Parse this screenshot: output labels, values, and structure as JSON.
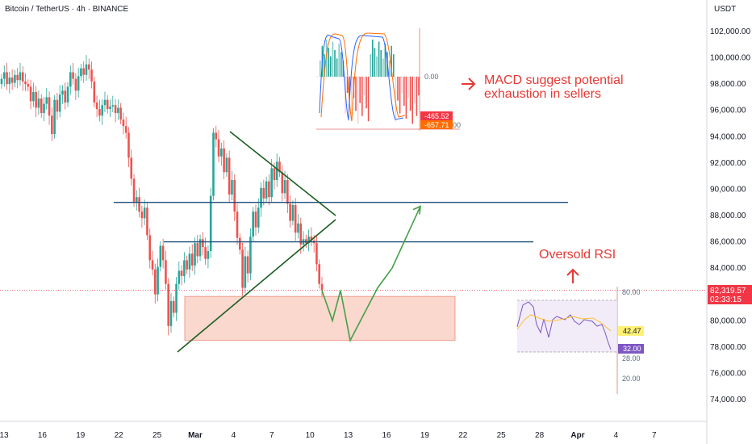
{
  "header": {
    "title": "Bitcoin / TetherUS · 4h · BINANCE",
    "currency": "USDT"
  },
  "colors": {
    "up": "#26a69a",
    "down": "#ef5350",
    "hline": "#1e4d7b",
    "triangle": "#1b5e20",
    "projection": "#43a047",
    "zone": "#f8cbbd",
    "annotation": "#e53935",
    "price_tag": "#f23645",
    "rsi_line": "#7e57c2",
    "rsi_ma": "#fbc02d"
  },
  "chart_data": {
    "type": "candlestick",
    "ylim": [
      72500,
      104000
    ],
    "y_ticks": [
      "102,000.00",
      "100,000.00",
      "98,000.00",
      "96,000.00",
      "94,000.00",
      "92,000.00",
      "90,000.00",
      "88,000.00",
      "86,000.00",
      "84,000.00",
      "82,000.00",
      "80,000.00",
      "78,000.00",
      "76,000.00",
      "74,000.00"
    ],
    "x_ticks": [
      "13",
      "16",
      "19",
      "22",
      "25",
      "Mar",
      "4",
      "7",
      "10",
      "13",
      "16",
      "19",
      "22",
      "25",
      "28",
      "Apr",
      "4",
      "7"
    ],
    "closes": [
      98400,
      98900,
      98000,
      98500,
      98100,
      98700,
      98300,
      98900,
      98200,
      98000,
      97800,
      96700,
      97400,
      96200,
      96900,
      95800,
      96500,
      97000,
      95600,
      94200,
      96800,
      95900,
      97200,
      97500,
      96600,
      97800,
      98900,
      98400,
      97500,
      98600,
      99200,
      98700,
      99500,
      99100,
      98200,
      96600,
      96100,
      95600,
      96400,
      96800,
      96100,
      96300,
      96400,
      95800,
      96200,
      95300,
      94800,
      94300,
      92400,
      90800,
      89000,
      89400,
      88300,
      87800,
      88600,
      86500,
      84600,
      83900,
      82000,
      84100,
      85700,
      84600,
      82800,
      79600,
      81500,
      80600,
      82800,
      83800,
      83400,
      84600,
      83900,
      85100,
      84200,
      85900,
      84900,
      86200,
      85600,
      84700,
      85300,
      89500,
      94300,
      93800,
      92500,
      93100,
      91300,
      92400,
      89600,
      90700,
      88300,
      86300,
      85400,
      82500,
      84900,
      83600,
      86400,
      88300,
      87100,
      88600,
      90100,
      89300,
      90600,
      89400,
      91600,
      90700,
      92100,
      91300,
      89700,
      90700,
      88900,
      87600,
      88800,
      86700,
      87400,
      85800,
      86200,
      85900,
      86400,
      86100,
      85900,
      84300,
      82800,
      82320
    ],
    "price": "82,319.57",
    "countdown": "02:33:15",
    "resistance_levels": [
      89000,
      86000
    ],
    "triangle": {
      "upper": [
        [
          94500,
          88000
        ]
      ],
      "lower": [
        [
          78200,
          87500
        ]
      ]
    },
    "demand_zone": [
      78500,
      81850
    ],
    "projection_path": [
      82300,
      80000,
      82300,
      78500,
      82500,
      84000,
      88700
    ],
    "macd": {
      "zero_label": "0.00",
      "values": [
        "-465.52",
        "-657.71"
      ],
      "tail": "00"
    },
    "rsi": {
      "levels": [
        "80.00",
        "28.00",
        "20.00"
      ],
      "value": "42.47",
      "value2": "32.00"
    },
    "annotations": {
      "macd": "MACD suggest potential exhaustion in sellers",
      "rsi": "Oversold RSI"
    }
  }
}
